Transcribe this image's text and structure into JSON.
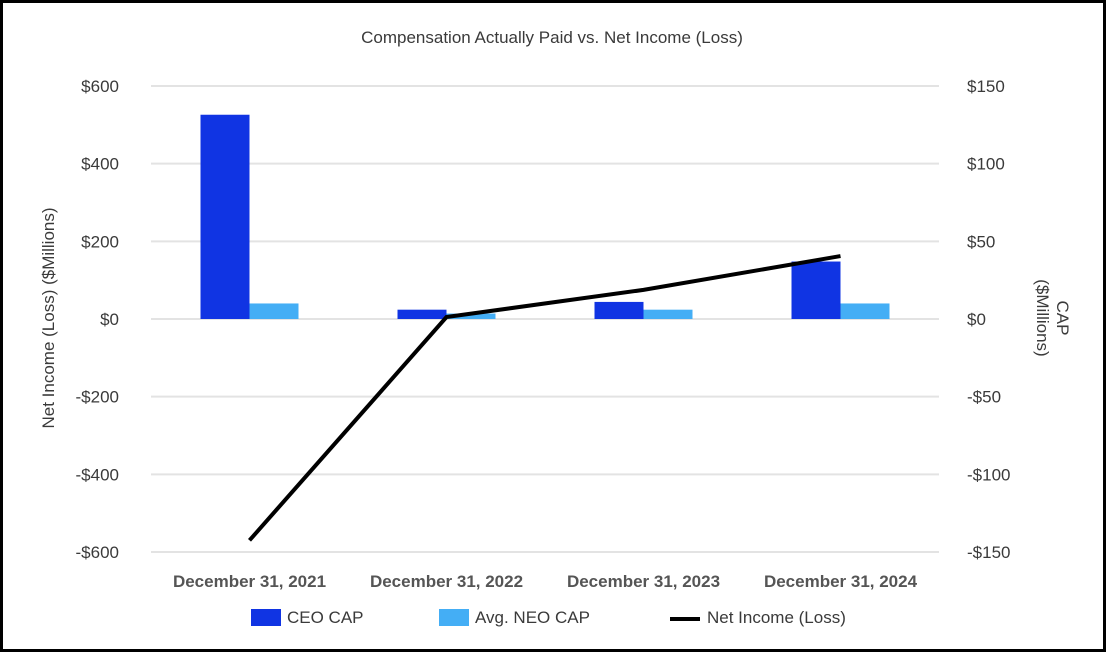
{
  "chart_data": {
    "type": "bar",
    "title": "Compensation Actually Paid vs. Net Income (Loss)",
    "categories": [
      "December 31, 2021",
      "December 31, 2022",
      "December 31, 2023",
      "December 31, 2024"
    ],
    "left_axis": {
      "label": "Net Income (Loss) ($Millions)",
      "ylim": [
        -600,
        600
      ],
      "ticks": [
        600,
        400,
        200,
        0,
        -200,
        -400,
        -600
      ],
      "tick_labels": [
        "$600",
        "$400",
        "$200",
        "$0",
        "-$200",
        "-$400",
        "-$600"
      ]
    },
    "right_axis": {
      "label_line1": "CAP",
      "label_line2": "($Millions)",
      "ylim": [
        -150,
        150
      ],
      "ticks": [
        150,
        100,
        50,
        0,
        -50,
        -100,
        -150
      ],
      "tick_labels": [
        "$150",
        "$100",
        "$50",
        "$0",
        "-$50",
        "-$100",
        "-$150"
      ]
    },
    "series": [
      {
        "name": "CEO CAP",
        "type": "bar",
        "axis": "right",
        "color": "#1034e3",
        "values": [
          131.5,
          6,
          11,
          37
        ]
      },
      {
        "name": "Avg. NEO CAP",
        "type": "bar",
        "axis": "right",
        "color": "#44aef5",
        "values": [
          10,
          3.5,
          6,
          10
        ]
      },
      {
        "name": "Net Income (Loss)",
        "type": "line",
        "axis": "left",
        "color": "#000000",
        "values": [
          -570,
          5,
          75,
          162
        ]
      }
    ],
    "grid": true,
    "legend_position": "bottom"
  }
}
